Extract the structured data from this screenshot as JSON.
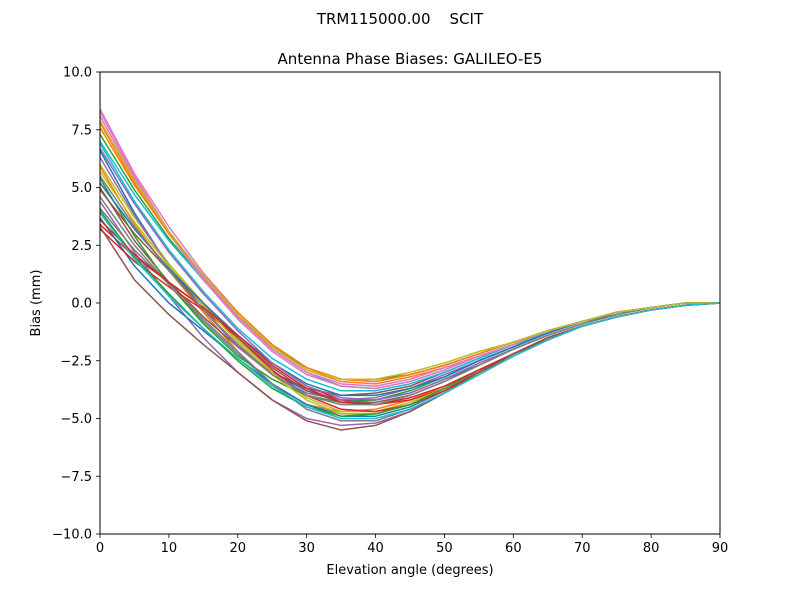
{
  "figure": {
    "suptitle": "TRM115000.00    SCIT"
  },
  "chart_data": {
    "type": "line",
    "title": "Antenna Phase Biases: GALILEO-E5",
    "xlabel": "Elevation angle (degrees)",
    "ylabel": "Bias (mm)",
    "xlim": [
      0,
      90
    ],
    "ylim": [
      -10,
      10
    ],
    "xticks": [
      0,
      10,
      20,
      30,
      40,
      50,
      60,
      70,
      80,
      90
    ],
    "xtick_labels": [
      "0",
      "10",
      "20",
      "30",
      "40",
      "50",
      "60",
      "70",
      "80",
      "90"
    ],
    "yticks": [
      10,
      7.5,
      5,
      2.5,
      0,
      -2.5,
      -5,
      -7.5,
      -10
    ],
    "ytick_labels": [
      "10.0",
      "7.5",
      "5.0",
      "2.5",
      "0.0",
      "−2.5",
      "−5.0",
      "−7.5",
      "−10.0"
    ],
    "grid": false,
    "legend": false,
    "x": [
      0,
      5,
      10,
      15,
      20,
      25,
      30,
      35,
      40,
      45,
      50,
      55,
      60,
      65,
      70,
      75,
      80,
      85,
      90
    ],
    "series": [
      {
        "color": "#1f77b4",
        "values": [
          6.6,
          3.9,
          1.6,
          -0.3,
          -1.9,
          -3.0,
          -3.8,
          -4.2,
          -4.2,
          -3.9,
          -3.3,
          -2.7,
          -2.0,
          -1.4,
          -0.9,
          -0.5,
          -0.2,
          0.0,
          0.0
        ]
      },
      {
        "color": "#ff7f0e",
        "values": [
          5.9,
          3.4,
          1.4,
          -0.4,
          -2.1,
          -3.5,
          -4.4,
          -4.7,
          -4.6,
          -4.2,
          -3.6,
          -2.9,
          -2.2,
          -1.6,
          -1.0,
          -0.6,
          -0.3,
          -0.1,
          0.0
        ]
      },
      {
        "color": "#2ca02c",
        "values": [
          7.3,
          4.9,
          2.8,
          1.0,
          -0.6,
          -1.9,
          -2.8,
          -3.3,
          -3.3,
          -3.1,
          -2.7,
          -2.2,
          -1.7,
          -1.2,
          -0.8,
          -0.4,
          -0.2,
          0.0,
          0.0
        ]
      },
      {
        "color": "#d62728",
        "values": [
          3.4,
          2.0,
          0.9,
          -0.2,
          -1.4,
          -2.6,
          -3.6,
          -4.2,
          -4.4,
          -4.2,
          -3.7,
          -3.0,
          -2.3,
          -1.6,
          -1.0,
          -0.6,
          -0.3,
          -0.1,
          0.0
        ]
      },
      {
        "color": "#9467bd",
        "values": [
          4.4,
          2.2,
          0.3,
          -1.5,
          -3.0,
          -4.2,
          -5.0,
          -5.3,
          -5.2,
          -4.7,
          -3.9,
          -3.1,
          -2.3,
          -1.6,
          -1.0,
          -0.6,
          -0.3,
          -0.1,
          0.0
        ]
      },
      {
        "color": "#8c564b",
        "values": [
          5.0,
          2.7,
          0.9,
          -0.6,
          -1.9,
          -3.0,
          -3.7,
          -4.0,
          -3.9,
          -3.6,
          -3.0,
          -2.4,
          -1.8,
          -1.3,
          -0.8,
          -0.4,
          -0.2,
          0.0,
          0.0
        ]
      },
      {
        "color": "#e377c2",
        "values": [
          8.4,
          5.6,
          3.3,
          1.3,
          -0.4,
          -1.8,
          -2.8,
          -3.3,
          -3.4,
          -3.1,
          -2.7,
          -2.2,
          -1.7,
          -1.2,
          -0.8,
          -0.4,
          -0.2,
          0.0,
          0.0
        ]
      },
      {
        "color": "#7f7f7f",
        "values": [
          4.6,
          2.5,
          0.8,
          -0.8,
          -2.2,
          -3.5,
          -4.4,
          -4.8,
          -4.8,
          -4.4,
          -3.7,
          -3.0,
          -2.2,
          -1.6,
          -1.0,
          -0.6,
          -0.3,
          -0.1,
          0.0
        ]
      },
      {
        "color": "#bcbd22",
        "values": [
          6.0,
          3.7,
          1.7,
          0.0,
          -1.6,
          -3.0,
          -4.1,
          -4.7,
          -4.7,
          -4.3,
          -3.7,
          -2.9,
          -2.2,
          -1.5,
          -1.0,
          -0.6,
          -0.3,
          -0.1,
          0.0
        ]
      },
      {
        "color": "#17becf",
        "values": [
          7.0,
          4.7,
          2.7,
          1.0,
          -0.6,
          -2.0,
          -3.0,
          -3.6,
          -3.7,
          -3.4,
          -2.9,
          -2.3,
          -1.8,
          -1.3,
          -0.8,
          -0.4,
          -0.2,
          0.0,
          0.0
        ]
      },
      {
        "color": "#1f77b4",
        "values": [
          3.7,
          1.6,
          0.0,
          -1.2,
          -2.4,
          -3.5,
          -4.4,
          -4.9,
          -4.9,
          -4.5,
          -3.8,
          -3.0,
          -2.2,
          -1.6,
          -1.0,
          -0.6,
          -0.3,
          -0.1,
          0.0
        ]
      },
      {
        "color": "#ff7f0e",
        "values": [
          7.8,
          5.2,
          3.0,
          1.1,
          -0.5,
          -1.9,
          -2.9,
          -3.4,
          -3.5,
          -3.2,
          -2.8,
          -2.3,
          -1.8,
          -1.2,
          -0.8,
          -0.4,
          -0.2,
          0.0,
          0.0
        ]
      },
      {
        "color": "#2ca02c",
        "values": [
          5.4,
          2.9,
          0.8,
          -0.9,
          -2.3,
          -3.3,
          -4.0,
          -4.3,
          -4.2,
          -3.8,
          -3.2,
          -2.5,
          -1.9,
          -1.3,
          -0.8,
          -0.5,
          -0.2,
          0.0,
          0.0
        ]
      },
      {
        "color": "#d62728",
        "values": [
          3.2,
          1.8,
          0.7,
          -0.3,
          -1.5,
          -2.9,
          -4.0,
          -4.6,
          -4.7,
          -4.4,
          -3.8,
          -3.0,
          -2.2,
          -1.6,
          -1.0,
          -0.6,
          -0.3,
          -0.1,
          0.0
        ]
      },
      {
        "color": "#9467bd",
        "values": [
          6.3,
          3.8,
          1.6,
          -0.3,
          -1.9,
          -3.1,
          -3.9,
          -4.2,
          -4.1,
          -3.7,
          -3.1,
          -2.5,
          -1.9,
          -1.3,
          -0.8,
          -0.4,
          -0.2,
          0.0,
          0.0
        ]
      },
      {
        "color": "#8c564b",
        "values": [
          4.9,
          3.0,
          1.4,
          -0.1,
          -1.5,
          -2.8,
          -3.8,
          -4.3,
          -4.3,
          -4.0,
          -3.4,
          -2.7,
          -2.0,
          -1.4,
          -0.9,
          -0.5,
          -0.2,
          0.0,
          0.0
        ]
      },
      {
        "color": "#e377c2",
        "values": [
          8.1,
          5.4,
          3.0,
          1.0,
          -0.7,
          -2.1,
          -3.1,
          -3.6,
          -3.7,
          -3.4,
          -2.9,
          -2.3,
          -1.8,
          -1.2,
          -0.8,
          -0.4,
          -0.2,
          0.0,
          0.0
        ]
      },
      {
        "color": "#7f7f7f",
        "values": [
          4.1,
          2.3,
          0.8,
          -0.7,
          -2.1,
          -3.5,
          -4.6,
          -5.1,
          -5.1,
          -4.6,
          -3.9,
          -3.1,
          -2.3,
          -1.6,
          -1.0,
          -0.6,
          -0.3,
          -0.1,
          0.0
        ]
      },
      {
        "color": "#bcbd22",
        "values": [
          5.7,
          3.5,
          1.6,
          -0.1,
          -1.7,
          -3.1,
          -4.2,
          -4.8,
          -4.8,
          -4.4,
          -3.7,
          -2.9,
          -2.2,
          -1.5,
          -1.0,
          -0.6,
          -0.3,
          -0.1,
          0.0
        ]
      },
      {
        "color": "#17becf",
        "values": [
          6.9,
          4.4,
          2.3,
          0.5,
          -1.1,
          -2.4,
          -3.3,
          -3.8,
          -3.8,
          -3.5,
          -3.0,
          -2.4,
          -1.8,
          -1.3,
          -0.8,
          -0.4,
          -0.2,
          0.0,
          0.0
        ]
      },
      {
        "color": "#1f77b4",
        "values": [
          5.2,
          3.2,
          1.5,
          0.0,
          -1.4,
          -2.6,
          -3.5,
          -4.0,
          -4.0,
          -3.7,
          -3.2,
          -2.5,
          -1.9,
          -1.3,
          -0.8,
          -0.5,
          -0.2,
          0.0,
          0.0
        ]
      },
      {
        "color": "#ff7f0e",
        "values": [
          7.6,
          5.1,
          3.0,
          1.2,
          -0.4,
          -1.8,
          -2.8,
          -3.3,
          -3.4,
          -3.1,
          -2.7,
          -2.2,
          -1.7,
          -1.2,
          -0.8,
          -0.4,
          -0.2,
          0.0,
          0.0
        ]
      },
      {
        "color": "#2ca02c",
        "values": [
          4.0,
          2.0,
          0.4,
          -1.1,
          -2.5,
          -3.7,
          -4.5,
          -4.9,
          -4.8,
          -4.4,
          -3.7,
          -2.9,
          -2.2,
          -1.5,
          -1.0,
          -0.6,
          -0.3,
          -0.1,
          0.0
        ]
      },
      {
        "color": "#d62728",
        "values": [
          3.6,
          2.1,
          0.9,
          -0.2,
          -1.4,
          -2.7,
          -3.7,
          -4.3,
          -4.4,
          -4.1,
          -3.6,
          -2.9,
          -2.2,
          -1.5,
          -1.0,
          -0.6,
          -0.3,
          -0.1,
          0.0
        ]
      },
      {
        "color": "#9467bd",
        "values": [
          6.7,
          4.3,
          2.2,
          0.4,
          -1.2,
          -2.6,
          -3.6,
          -4.1,
          -4.2,
          -3.9,
          -3.3,
          -2.6,
          -2.0,
          -1.4,
          -0.9,
          -0.5,
          -0.2,
          0.0,
          0.0
        ]
      },
      {
        "color": "#8c564b",
        "values": [
          3.3,
          1.0,
          -0.5,
          -1.8,
          -3.0,
          -4.2,
          -5.1,
          -5.5,
          -5.3,
          -4.7,
          -3.9,
          -3.0,
          -2.2,
          -1.5,
          -1.0,
          -0.6,
          -0.3,
          -0.1,
          0.0
        ]
      },
      {
        "color": "#e377c2",
        "values": [
          8.3,
          5.5,
          3.1,
          1.1,
          -0.6,
          -2.0,
          -3.0,
          -3.5,
          -3.6,
          -3.3,
          -2.8,
          -2.3,
          -1.8,
          -1.2,
          -0.8,
          -0.4,
          -0.2,
          0.0,
          0.0
        ]
      },
      {
        "color": "#7f7f7f",
        "values": [
          5.5,
          3.3,
          1.4,
          -0.3,
          -1.8,
          -3.1,
          -4.0,
          -4.4,
          -4.4,
          -4.0,
          -3.4,
          -2.7,
          -2.0,
          -1.4,
          -0.9,
          -0.5,
          -0.2,
          0.0,
          0.0
        ]
      },
      {
        "color": "#bcbd22",
        "values": [
          7.9,
          5.3,
          3.1,
          1.2,
          -0.5,
          -1.9,
          -2.9,
          -3.3,
          -3.3,
          -3.0,
          -2.6,
          -2.1,
          -1.7,
          -1.2,
          -0.8,
          -0.4,
          -0.2,
          0.0,
          0.0
        ]
      },
      {
        "color": "#17becf",
        "values": [
          3.9,
          1.9,
          0.3,
          -1.1,
          -2.4,
          -3.6,
          -4.5,
          -5.0,
          -5.0,
          -4.6,
          -3.9,
          -3.1,
          -2.3,
          -1.6,
          -1.0,
          -0.6,
          -0.3,
          -0.1,
          0.0
        ]
      }
    ]
  }
}
